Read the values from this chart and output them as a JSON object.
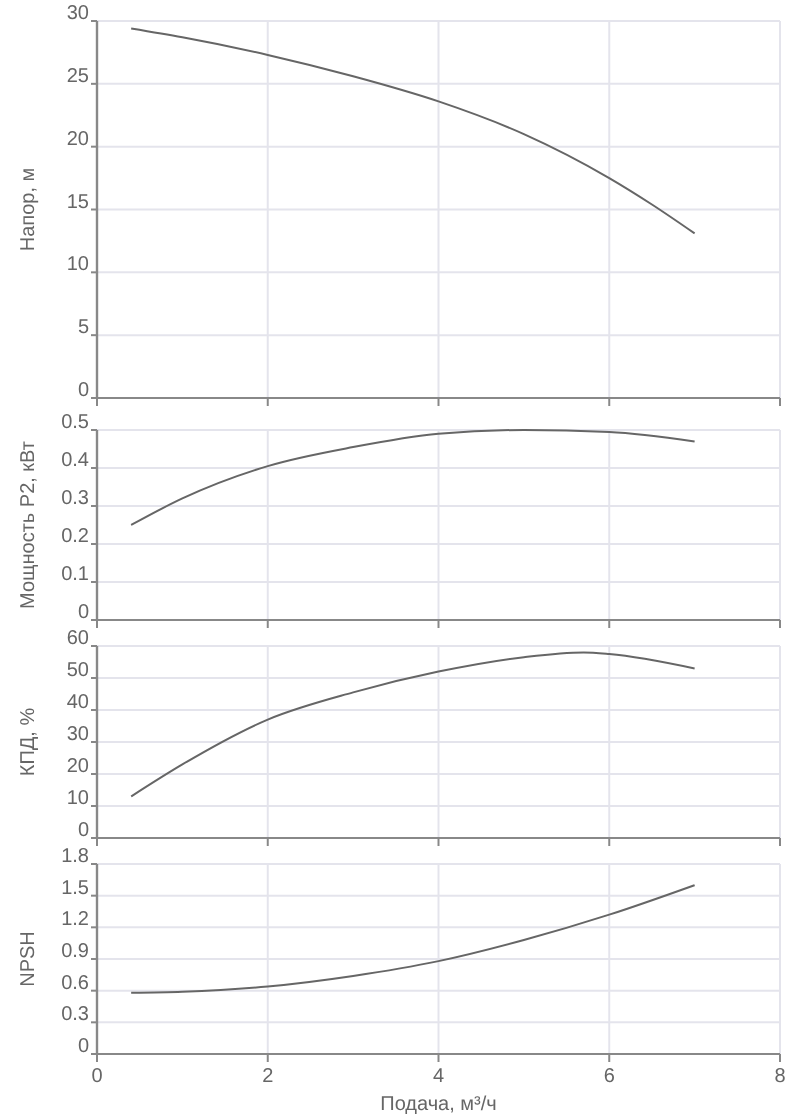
{
  "chart_data": [
    {
      "type": "line",
      "ylabel": "Напор, м",
      "x": [
        0.4,
        1,
        2,
        3,
        4,
        5,
        6,
        6.5,
        7
      ],
      "series": [
        {
          "color": "#666666",
          "values": [
            29.4,
            28.7,
            27.3,
            25.6,
            23.6,
            21,
            17.5,
            15.4,
            13.1
          ]
        }
      ],
      "xlim": [
        0,
        8
      ],
      "xticks": [
        0,
        2,
        4,
        6,
        8
      ],
      "ylim": [
        0,
        30
      ],
      "yticks": [
        0,
        5,
        10,
        15,
        20,
        25,
        30
      ],
      "grid": true,
      "tick_labels": "y"
    },
    {
      "type": "line",
      "ylabel": "Мощность P2, кВт",
      "x": [
        0.4,
        1,
        2,
        3,
        4,
        5,
        6,
        7
      ],
      "series": [
        {
          "color": "#666666",
          "values": [
            0.25,
            0.32,
            0.405,
            0.455,
            0.49,
            0.5,
            0.495,
            0.47
          ]
        }
      ],
      "xlim": [
        0,
        8
      ],
      "xticks": [
        0,
        2,
        4,
        6,
        8
      ],
      "ylim": [
        0,
        0.5
      ],
      "yticks": [
        0,
        0.1,
        0.2,
        0.3,
        0.4,
        0.5
      ],
      "grid": true,
      "tick_labels": "y"
    },
    {
      "type": "line",
      "ylabel": "КПД, %",
      "x": [
        0.4,
        1,
        2,
        3,
        4,
        5,
        5.7,
        6,
        7
      ],
      "series": [
        {
          "color": "#666666",
          "values": [
            13,
            23,
            37,
            45.5,
            52,
            56.5,
            58,
            57.5,
            53
          ]
        }
      ],
      "xlim": [
        0,
        8
      ],
      "xticks": [
        0,
        2,
        4,
        6,
        8
      ],
      "ylim": [
        0,
        60
      ],
      "yticks": [
        0,
        10,
        20,
        30,
        40,
        50,
        60
      ],
      "grid": true,
      "tick_labels": "y"
    },
    {
      "type": "line",
      "ylabel": "NPSH",
      "xlabel": "Подача, м³/ч",
      "x": [
        0.4,
        1,
        2,
        3,
        4,
        5,
        6,
        7
      ],
      "series": [
        {
          "color": "#666666",
          "values": [
            0.58,
            0.59,
            0.64,
            0.74,
            0.88,
            1.08,
            1.32,
            1.6
          ]
        }
      ],
      "xlim": [
        0,
        8
      ],
      "xticks": [
        0,
        2,
        4,
        6,
        8
      ],
      "ylim": [
        0,
        1.8
      ],
      "yticks": [
        0,
        0.3,
        0.6,
        0.9,
        1.2,
        1.5,
        1.8
      ],
      "grid": true
    }
  ]
}
